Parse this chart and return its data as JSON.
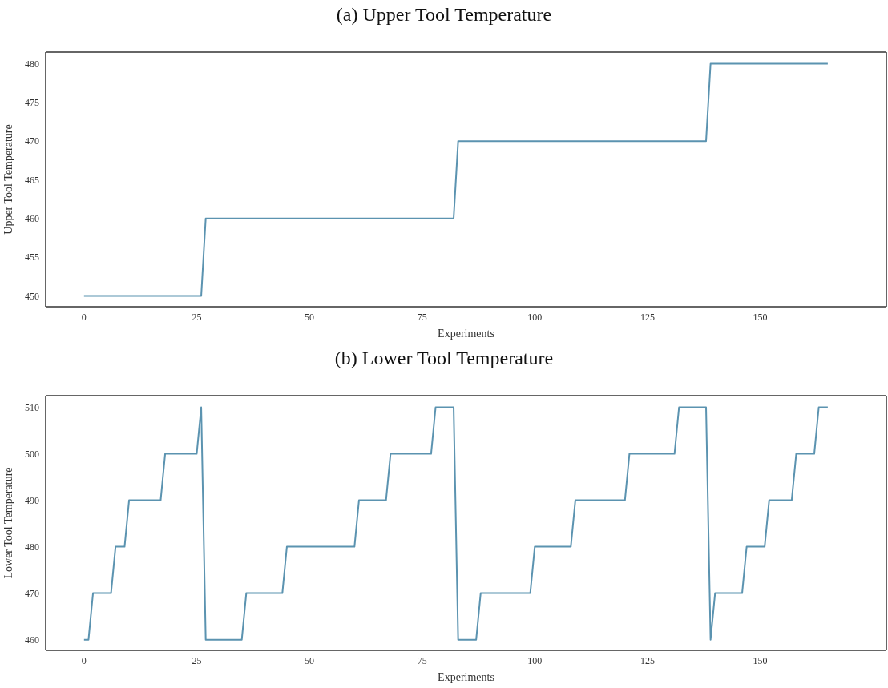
{
  "chart_data": [
    {
      "type": "line",
      "title": "(a) Upper Tool Temperature",
      "xlabel": "Experiments",
      "ylabel": "Upper Tool Temperature",
      "marker": "none",
      "line_style": "solid",
      "xlim": [
        -8.5,
        178
      ],
      "xticks": [
        0,
        25,
        50,
        75,
        100,
        125,
        150
      ],
      "ylim": [
        448.6,
        481.5
      ],
      "yticks": [
        450,
        455,
        460,
        465,
        470,
        475,
        480
      ],
      "series": [
        {
          "color": "#5b93b0",
          "x": [
            0,
            26,
            27,
            82,
            83,
            138,
            139,
            165
          ],
          "values": [
            450,
            450,
            460,
            460,
            470,
            470,
            480,
            480
          ]
        }
      ]
    },
    {
      "type": "line",
      "title": "(b) Lower Tool Temperature",
      "xlabel": "Experiments",
      "ylabel": "Lower Tool Temperature",
      "marker": "none",
      "line_style": "solid",
      "xlim": [
        -8.5,
        178
      ],
      "xticks": [
        0,
        25,
        50,
        75,
        100,
        125,
        150
      ],
      "ylim": [
        457.7,
        512.5
      ],
      "yticks": [
        460,
        470,
        480,
        490,
        500,
        510
      ],
      "series": [
        {
          "color": "#5b93b0",
          "x": [
            0,
            1,
            2,
            6,
            7,
            9,
            10,
            17,
            18,
            25,
            26,
            27,
            35,
            36,
            44,
            45,
            60,
            61,
            67,
            68,
            77,
            78,
            82,
            83,
            87,
            88,
            99,
            100,
            108,
            109,
            120,
            121,
            131,
            132,
            138,
            139,
            140,
            146,
            147,
            151,
            152,
            157,
            158,
            162,
            163,
            165
          ],
          "values": [
            460,
            460,
            470,
            470,
            480,
            480,
            490,
            490,
            500,
            500,
            510,
            460,
            460,
            470,
            470,
            480,
            480,
            490,
            490,
            500,
            500,
            510,
            510,
            460,
            460,
            470,
            470,
            480,
            480,
            490,
            490,
            500,
            500,
            510,
            510,
            460,
            470,
            470,
            480,
            480,
            490,
            490,
            500,
            500,
            510,
            510
          ]
        }
      ]
    }
  ]
}
